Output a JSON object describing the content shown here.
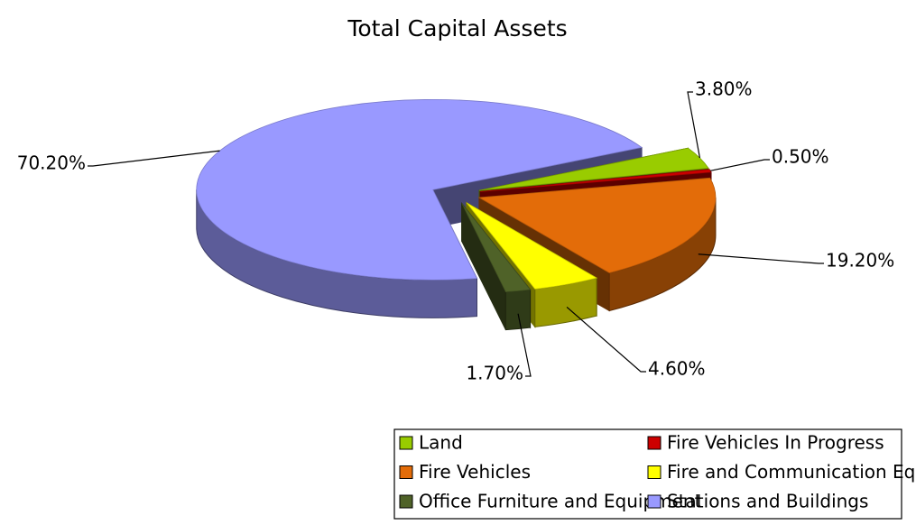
{
  "chart_data": {
    "type": "pie3d",
    "title": "Total Capital Assets",
    "categories": [
      "Land",
      "Fire Vehicles In Progress",
      "Fire Vehicles",
      "Fire and Communication Equipment",
      "Office Furniture and Equipment",
      "Stations and Buildings"
    ],
    "values": [
      3.8,
      0.5,
      19.2,
      4.6,
      1.7,
      70.2
    ],
    "value_labels": [
      "3.80%",
      "0.50%",
      "19.20%",
      "4.60%",
      "1.70%",
      "70.20%"
    ],
    "colors": [
      "#99cc00",
      "#cc0000",
      "#e36c09",
      "#ffff00",
      "#4f6228",
      "#9999ff"
    ],
    "legend": "bottom"
  }
}
